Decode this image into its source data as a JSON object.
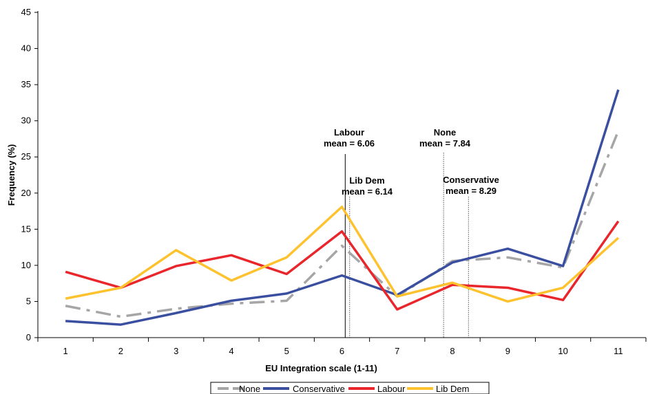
{
  "chart_data": {
    "type": "line",
    "xlabel": "EU Integration scale (1-11)",
    "ylabel": "Frequency (%)",
    "x": [
      1,
      2,
      3,
      4,
      5,
      6,
      7,
      8,
      9,
      10,
      11
    ],
    "ylim": [
      0,
      45
    ],
    "yticks": [
      0,
      5,
      10,
      15,
      20,
      25,
      30,
      35,
      40,
      45
    ],
    "grid": false,
    "legend": "bottom",
    "series": [
      {
        "name": "None",
        "color": "#a6a6a6",
        "dash": "dashdot",
        "values": [
          4.4,
          2.9,
          4.0,
          4.7,
          5.1,
          12.7,
          5.7,
          10.6,
          11.1,
          9.7,
          28.6
        ]
      },
      {
        "name": "Conservative",
        "color": "#3b4fa0",
        "dash": "solid",
        "values": [
          2.3,
          1.8,
          3.4,
          5.1,
          6.1,
          8.6,
          5.9,
          10.4,
          12.3,
          9.9,
          34.3
        ]
      },
      {
        "name": "Labour",
        "color": "#e8262b",
        "dash": "solid",
        "values": [
          9.1,
          6.9,
          9.9,
          11.4,
          8.8,
          14.7,
          3.9,
          7.3,
          6.9,
          5.2,
          16.1
        ]
      },
      {
        "name": "Lib Dem",
        "color": "#fec22f",
        "dash": "solid",
        "values": [
          5.4,
          6.9,
          12.1,
          7.9,
          11.1,
          18.1,
          5.7,
          7.6,
          5.0,
          6.9,
          13.8
        ]
      }
    ],
    "annotations": [
      {
        "lines": [
          "Labour",
          "mean = 6.06"
        ],
        "x": 6.06,
        "style": "solid"
      },
      {
        "lines": [
          "Lib Dem",
          "mean = 6.14"
        ],
        "x": 6.14,
        "style": "dotted"
      },
      {
        "lines": [
          "None",
          "mean = 7.84"
        ],
        "x": 7.84,
        "style": "dotted"
      },
      {
        "lines": [
          "Conservative",
          "mean = 8.29"
        ],
        "x": 8.29,
        "style": "dotted"
      }
    ]
  }
}
